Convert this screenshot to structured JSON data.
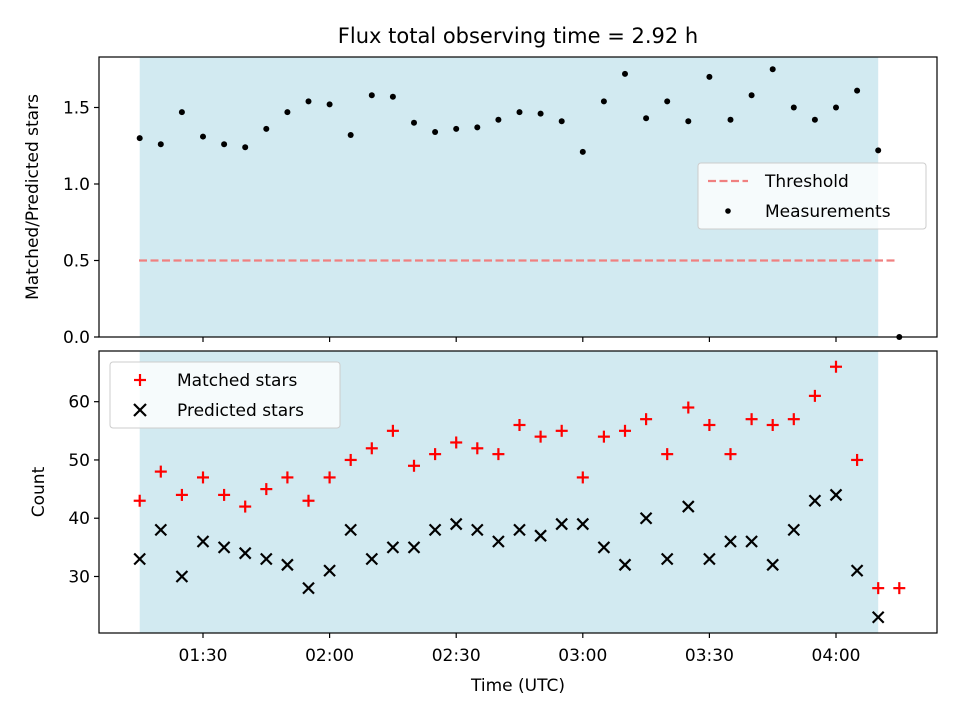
{
  "chart_data": [
    {
      "type": "scatter",
      "title": "Flux total observing time = 2.92 h",
      "xlabel": "",
      "ylabel": "Matched/Predicted stars",
      "ylim": [
        0,
        1.83
      ],
      "yticks": [
        "0.0",
        "0.5",
        "1.0",
        "1.5"
      ],
      "observing_window": [
        "01:15",
        "04:10"
      ],
      "legend_position": "center-right",
      "colors": {
        "window": "#add8e6",
        "threshold": "#f08080",
        "points": "#000000"
      },
      "series": [
        {
          "name": "Measurements",
          "marker": "dot",
          "x": [
            "01:15",
            "01:20",
            "01:25",
            "01:30",
            "01:35",
            "01:40",
            "01:45",
            "01:50",
            "01:55",
            "02:00",
            "02:05",
            "02:10",
            "02:15",
            "02:20",
            "02:25",
            "02:30",
            "02:35",
            "02:40",
            "02:45",
            "02:50",
            "02:55",
            "03:00",
            "03:05",
            "03:10",
            "03:15",
            "03:20",
            "03:25",
            "03:30",
            "03:35",
            "03:40",
            "03:45",
            "03:50",
            "03:55",
            "04:00",
            "04:05",
            "04:10",
            "04:15"
          ],
          "y": [
            1.3,
            1.26,
            1.47,
            1.31,
            1.26,
            1.24,
            1.36,
            1.47,
            1.54,
            1.52,
            1.32,
            1.58,
            1.57,
            1.4,
            1.34,
            1.36,
            1.37,
            1.42,
            1.47,
            1.46,
            1.41,
            1.21,
            1.54,
            1.72,
            1.43,
            1.54,
            1.41,
            1.7,
            1.42,
            1.58,
            1.75,
            1.5,
            1.42,
            1.5,
            1.61,
            1.22,
            0.0
          ]
        },
        {
          "name": "Threshold",
          "style": "dashed",
          "x": [
            "01:15",
            "04:15"
          ],
          "y": [
            0.5,
            0.5
          ]
        }
      ]
    },
    {
      "type": "scatter",
      "title": "",
      "xlabel": "Time (UTC)",
      "ylabel": "Count",
      "ylim": [
        20.3,
        68.7
      ],
      "yticks": [
        "30",
        "40",
        "50",
        "60"
      ],
      "xticks": [
        "01:30",
        "02:00",
        "02:30",
        "03:00",
        "03:30",
        "04:00"
      ],
      "observing_window": [
        "01:15",
        "04:10"
      ],
      "legend_position": "top-left",
      "colors": {
        "window": "#add8e6",
        "matched": "#ff0000",
        "predicted": "#000000"
      },
      "series": [
        {
          "name": "Matched stars",
          "marker": "plus",
          "x": [
            "01:15",
            "01:20",
            "01:25",
            "01:30",
            "01:35",
            "01:40",
            "01:45",
            "01:50",
            "01:55",
            "02:00",
            "02:05",
            "02:10",
            "02:15",
            "02:20",
            "02:25",
            "02:30",
            "02:35",
            "02:40",
            "02:45",
            "02:50",
            "02:55",
            "03:00",
            "03:05",
            "03:10",
            "03:15",
            "03:20",
            "03:25",
            "03:30",
            "03:35",
            "03:40",
            "03:45",
            "03:50",
            "03:55",
            "04:00",
            "04:05",
            "04:10",
            "04:15"
          ],
          "y": [
            43,
            48,
            44,
            47,
            44,
            42,
            45,
            47,
            43,
            47,
            50,
            52,
            55,
            49,
            51,
            53,
            52,
            51,
            56,
            54,
            55,
            47,
            54,
            55,
            57,
            51,
            59,
            56,
            51,
            57,
            56,
            57,
            61,
            66,
            50,
            28,
            28
          ]
        },
        {
          "name": "Predicted stars",
          "marker": "x",
          "x": [
            "01:15",
            "01:20",
            "01:25",
            "01:30",
            "01:35",
            "01:40",
            "01:45",
            "01:50",
            "01:55",
            "02:00",
            "02:05",
            "02:10",
            "02:15",
            "02:20",
            "02:25",
            "02:30",
            "02:35",
            "02:40",
            "02:45",
            "02:50",
            "02:55",
            "03:00",
            "03:05",
            "03:10",
            "03:15",
            "03:20",
            "03:25",
            "03:30",
            "03:35",
            "03:40",
            "03:45",
            "03:50",
            "03:55",
            "04:00",
            "04:05",
            "04:10"
          ],
          "y": [
            33,
            38,
            30,
            36,
            35,
            34,
            33,
            32,
            28,
            31,
            38,
            33,
            35,
            35,
            38,
            39,
            38,
            36,
            38,
            37,
            39,
            39,
            35,
            32,
            40,
            33,
            42,
            33,
            36,
            36,
            32,
            38,
            43,
            44,
            31,
            23
          ]
        }
      ]
    }
  ]
}
